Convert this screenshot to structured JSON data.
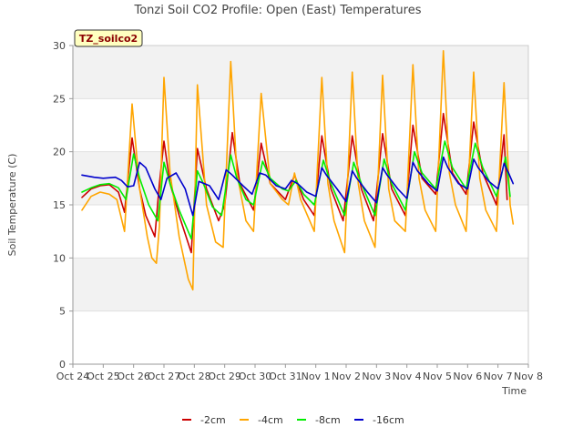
{
  "chart_data": {
    "type": "line",
    "title": "Tonzi Soil CO2 Profile: Open (East) Temperatures",
    "xlabel": "Time",
    "ylabel": "Soil Temperature (C)",
    "xlim": [
      0,
      15
    ],
    "ylim": [
      0,
      30
    ],
    "x_ticks": [
      "Oct 24",
      "Oct 25",
      "Oct 26",
      "Oct 27",
      "Oct 28",
      "Oct 29",
      "Oct 30",
      "Oct 31",
      "Nov 1",
      "Nov 2",
      "Nov 3",
      "Nov 4",
      "Nov 5",
      "Nov 6",
      "Nov 7",
      "Nov 8"
    ],
    "y_ticks": [
      0,
      5,
      10,
      15,
      20,
      25,
      30
    ],
    "grid": "horizontal bands",
    "legend_position": "bottom",
    "site_label": "TZ_soilco2",
    "series": [
      {
        "name": "-2cm",
        "color": "#cc0000",
        "x": [
          0.3,
          0.6,
          0.9,
          1.2,
          1.5,
          1.7,
          1.95,
          2.2,
          2.4,
          2.7,
          2.85,
          3.0,
          3.2,
          3.5,
          3.9,
          4.1,
          4.4,
          4.8,
          5.0,
          5.25,
          5.5,
          5.95,
          6.2,
          6.5,
          7.0,
          7.3,
          7.6,
          7.95,
          8.2,
          8.5,
          8.9,
          9.2,
          9.5,
          9.9,
          10.2,
          10.5,
          10.95,
          11.2,
          11.5,
          11.95,
          12.2,
          12.5,
          12.95,
          13.2,
          13.5,
          13.95,
          14.2,
          14.3
        ],
        "y": [
          15.7,
          16.5,
          16.8,
          16.9,
          16.2,
          14.3,
          21.3,
          16.5,
          14.0,
          12.0,
          17.0,
          21.0,
          17.0,
          14.0,
          10.5,
          20.3,
          16.5,
          13.5,
          15.0,
          21.8,
          17.0,
          14.5,
          20.8,
          17.0,
          15.5,
          17.8,
          15.5,
          14.0,
          21.5,
          16.5,
          13.5,
          21.5,
          16.5,
          13.5,
          21.7,
          16.5,
          14.0,
          22.5,
          17.5,
          16.0,
          23.6,
          18.0,
          16.0,
          22.8,
          18.0,
          15.0,
          21.6,
          15.5
        ]
      },
      {
        "name": "-4cm",
        "color": "#ffa500",
        "x": [
          0.3,
          0.6,
          0.9,
          1.2,
          1.45,
          1.7,
          1.95,
          2.2,
          2.45,
          2.6,
          2.75,
          2.85,
          3.0,
          3.2,
          3.5,
          3.8,
          3.95,
          4.1,
          4.4,
          4.7,
          4.95,
          5.2,
          5.4,
          5.7,
          5.95,
          6.2,
          6.5,
          6.9,
          7.1,
          7.3,
          7.5,
          7.95,
          8.2,
          8.4,
          8.6,
          8.95,
          9.2,
          9.4,
          9.6,
          9.95,
          10.2,
          10.4,
          10.6,
          10.95,
          11.2,
          11.4,
          11.6,
          11.95,
          12.2,
          12.4,
          12.6,
          12.95,
          13.2,
          13.4,
          13.6,
          13.95,
          14.2,
          14.4,
          14.5
        ],
        "y": [
          14.5,
          15.8,
          16.2,
          16.0,
          15.5,
          12.5,
          24.5,
          16.5,
          12.0,
          10.0,
          9.5,
          13.0,
          27.0,
          18.0,
          12.0,
          8.0,
          7.0,
          26.3,
          15.0,
          11.5,
          11.0,
          28.5,
          18.0,
          13.5,
          12.5,
          25.5,
          17.0,
          15.5,
          15.0,
          18.0,
          15.5,
          12.5,
          27.0,
          17.0,
          13.5,
          10.5,
          27.5,
          17.0,
          13.5,
          11.0,
          27.2,
          16.5,
          13.5,
          12.5,
          28.2,
          17.5,
          14.5,
          12.5,
          29.5,
          18.0,
          15.0,
          12.5,
          27.5,
          17.5,
          14.5,
          12.5,
          26.5,
          15.0,
          13.2
        ]
      },
      {
        "name": "-8cm",
        "color": "#00ee00",
        "x": [
          0.3,
          0.6,
          0.9,
          1.2,
          1.5,
          1.75,
          2.0,
          2.2,
          2.5,
          2.8,
          3.0,
          3.2,
          3.5,
          3.9,
          4.1,
          4.3,
          4.6,
          4.9,
          5.2,
          5.4,
          5.7,
          5.95,
          6.25,
          6.5,
          6.9,
          7.1,
          7.35,
          7.6,
          7.95,
          8.25,
          8.5,
          8.95,
          9.25,
          9.5,
          9.95,
          10.25,
          10.5,
          10.95,
          11.25,
          11.5,
          11.95,
          12.25,
          12.5,
          12.95,
          13.25,
          13.5,
          13.95,
          14.25,
          14.4
        ],
        "y": [
          16.2,
          16.6,
          16.9,
          17.0,
          16.6,
          15.5,
          19.8,
          17.5,
          15.0,
          13.5,
          19.0,
          17.0,
          14.5,
          11.8,
          18.2,
          17.0,
          14.8,
          14.0,
          19.7,
          17.5,
          15.5,
          15.0,
          19.1,
          17.5,
          16.5,
          16.3,
          17.3,
          16.0,
          15.0,
          19.2,
          17.0,
          14.0,
          19.0,
          17.0,
          14.0,
          19.3,
          17.0,
          14.5,
          20.0,
          18.0,
          16.5,
          21.0,
          18.5,
          16.5,
          20.8,
          18.5,
          15.8,
          19.5,
          15.8
        ]
      },
      {
        "name": "-16cm",
        "color": "#0000cc",
        "x": [
          0.3,
          0.7,
          1.0,
          1.4,
          1.6,
          1.8,
          2.0,
          2.2,
          2.4,
          2.7,
          2.9,
          3.1,
          3.4,
          3.7,
          3.95,
          4.15,
          4.5,
          4.8,
          5.05,
          5.25,
          5.6,
          5.9,
          6.15,
          6.35,
          6.7,
          7.0,
          7.2,
          7.4,
          7.7,
          8.0,
          8.2,
          8.35,
          8.7,
          9.0,
          9.2,
          9.35,
          9.7,
          10.0,
          10.2,
          10.35,
          10.7,
          11.0,
          11.2,
          11.35,
          11.7,
          12.0,
          12.2,
          12.35,
          12.7,
          13.0,
          13.2,
          13.35,
          13.7,
          14.0,
          14.2,
          14.35,
          14.5
        ],
        "y": [
          17.8,
          17.6,
          17.5,
          17.6,
          17.3,
          16.7,
          16.8,
          19.0,
          18.5,
          16.5,
          15.5,
          17.5,
          18.0,
          16.5,
          14.0,
          17.2,
          16.8,
          15.5,
          18.3,
          17.8,
          16.8,
          16.0,
          18.0,
          17.8,
          16.8,
          16.5,
          17.3,
          17.0,
          16.2,
          15.8,
          18.5,
          17.8,
          16.5,
          15.3,
          18.2,
          17.5,
          16.2,
          15.2,
          18.5,
          17.8,
          16.5,
          15.6,
          19.0,
          18.2,
          17.0,
          16.3,
          19.5,
          18.5,
          17.0,
          16.5,
          19.3,
          18.5,
          17.2,
          16.5,
          18.9,
          18.0,
          17.0
        ]
      }
    ]
  }
}
